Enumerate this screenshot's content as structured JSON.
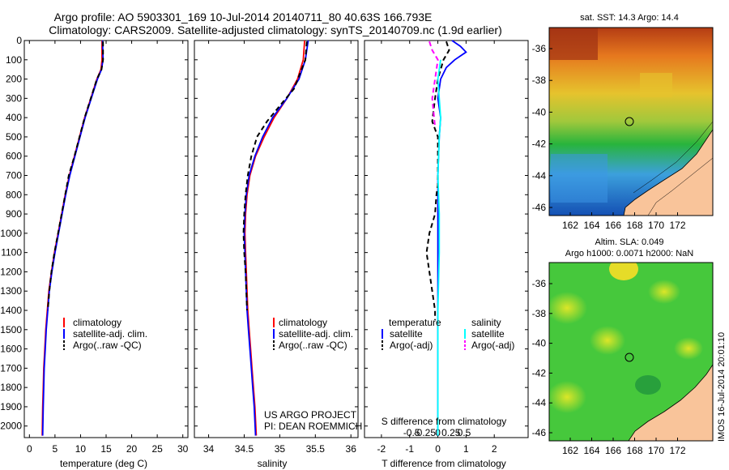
{
  "titles": {
    "line1": "Argo profile: AO 5903301_169 10-Jul-2014 20140711_80 40.63S 166.793E",
    "line2": "Climatology: CARS2009. Satellite-adjusted climatology: synTS_20140709.nc (1.9d earlier)"
  },
  "credits": {
    "line1": "US ARGO PROJECT",
    "line2": "PI: DEAN ROEMMICH",
    "imos": "IMOS 16-Jul-2014 20:01:10"
  },
  "maps": {
    "sst_title": "sat. SST: 14.3 Argo: 14.4",
    "sla_title1": "Altim. SLA: 0.049",
    "sla_title2": "Argo h1000: 0.0071 h2000: NaN",
    "lat_ticks": [
      "-36",
      "-38",
      "-40",
      "-42",
      "-44",
      "-46"
    ],
    "lon_ticks": [
      "162",
      "164",
      "166",
      "168",
      "170",
      "172"
    ],
    "float_lat": -40.63,
    "float_lon": 166.793,
    "colors": {
      "land": "#f9c49a",
      "warm": "#b43c14",
      "mid": "#e6c32d",
      "green": "#28b43c",
      "cool": "#3c96e6",
      "deep": "#1450b4"
    }
  },
  "chart_data": [
    {
      "type": "line",
      "xlabel": "temperature (deg C)",
      "ylabel": "",
      "xlim": [
        -1,
        31
      ],
      "ylim": [
        2060,
        0
      ],
      "x_ticks": [
        "0",
        "5",
        "10",
        "15",
        "20",
        "25",
        "30"
      ],
      "y_ticks": [
        "0",
        "100",
        "200",
        "300",
        "400",
        "500",
        "600",
        "700",
        "800",
        "900",
        "1000",
        "1100",
        "1200",
        "1300",
        "1400",
        "1500",
        "1600",
        "1700",
        "1800",
        "1900",
        "2000"
      ],
      "legend": [
        "climatology",
        "satellite-adj. clim.",
        "Argo(..raw -QC)"
      ],
      "series": [
        {
          "name": "climatology",
          "color": "#ff0000",
          "x": [
            14.2,
            14.2,
            14.0,
            13.2,
            12.0,
            10.8,
            9.8,
            8.8,
            7.8,
            7.0,
            6.3,
            5.6,
            4.9,
            4.3,
            3.8,
            3.5,
            3.2,
            3.0,
            2.8,
            2.7,
            2.6,
            2.5
          ],
          "y": [
            0,
            100,
            150,
            200,
            300,
            400,
            500,
            600,
            700,
            800,
            900,
            1000,
            1100,
            1200,
            1300,
            1400,
            1500,
            1600,
            1700,
            1800,
            1900,
            2050
          ]
        },
        {
          "name": "satellite-adj. clim.",
          "color": "#0000ff",
          "x": [
            14.3,
            14.4,
            14.1,
            13.3,
            12.1,
            10.9,
            9.9,
            8.9,
            7.9,
            7.1,
            6.4,
            5.7,
            5.0,
            4.4,
            3.9,
            3.6,
            3.3,
            3.1,
            2.9,
            2.8,
            2.7,
            2.6
          ],
          "y": [
            0,
            100,
            150,
            200,
            300,
            400,
            500,
            600,
            700,
            800,
            900,
            1000,
            1100,
            1200,
            1300,
            1400,
            1500,
            1600,
            1700,
            1800,
            1900,
            2050
          ]
        },
        {
          "name": "Argo(..raw -QC)",
          "color": "#000000",
          "dashed": true,
          "x": [
            14.4,
            14.4,
            14.1,
            13.2,
            12.0,
            10.8,
            9.8,
            8.8,
            7.7,
            7.0,
            6.3,
            5.6,
            4.9,
            4.3,
            3.9,
            3.6
          ],
          "y": [
            5,
            100,
            150,
            200,
            300,
            400,
            500,
            600,
            700,
            800,
            900,
            1000,
            1100,
            1200,
            1300,
            1400
          ]
        }
      ]
    },
    {
      "type": "line",
      "xlabel": "salinity",
      "ylabel": "",
      "xlim": [
        33.8,
        36.1
      ],
      "ylim": [
        2060,
        0
      ],
      "x_ticks": [
        "34",
        "34.5",
        "35",
        "35.5",
        "36"
      ],
      "legend": [
        "climatology",
        "satellite-adj. clim.",
        "Argo(..raw -QC)"
      ],
      "series": [
        {
          "name": "climatology",
          "color": "#ff0000",
          "x": [
            35.35,
            35.33,
            35.25,
            35.1,
            34.92,
            34.78,
            34.66,
            34.58,
            34.54,
            34.52,
            34.51,
            34.52,
            34.53,
            34.55,
            34.57,
            34.59,
            34.61,
            34.63,
            34.65,
            34.67
          ],
          "y": [
            0,
            100,
            200,
            300,
            400,
            500,
            600,
            700,
            800,
            900,
            1000,
            1100,
            1200,
            1400,
            1500,
            1600,
            1700,
            1800,
            1900,
            2050
          ]
        },
        {
          "name": "satellite-adj. clim.",
          "color": "#0000ff",
          "x": [
            35.4,
            35.36,
            35.27,
            35.1,
            34.9,
            34.76,
            34.65,
            34.57,
            34.53,
            34.51,
            34.5,
            34.51,
            34.52,
            34.54,
            34.56,
            34.58,
            34.6,
            34.62,
            34.64,
            34.66
          ],
          "y": [
            0,
            100,
            200,
            300,
            400,
            500,
            600,
            700,
            800,
            900,
            1000,
            1100,
            1200,
            1400,
            1500,
            1600,
            1700,
            1800,
            1900,
            2050
          ]
        },
        {
          "name": "Argo(..raw -QC)",
          "color": "#000000",
          "dashed": true,
          "x": [
            35.38,
            35.36,
            35.2,
            35.02,
            34.82,
            34.68,
            34.6,
            34.55,
            34.52,
            34.5,
            34.49,
            34.5,
            34.52,
            34.54
          ],
          "y": [
            5,
            100,
            250,
            330,
            420,
            500,
            600,
            700,
            800,
            900,
            1000,
            1100,
            1200,
            1400
          ]
        }
      ]
    },
    {
      "type": "line",
      "xlabel": "T difference from climatology",
      "xlabel2": "S difference from climatology",
      "xlim": [
        -2.6,
        3.2
      ],
      "ylim": [
        2060,
        0
      ],
      "x_ticks": [
        "-2",
        "-1",
        "0",
        "1",
        "2"
      ],
      "s_ticks": [
        "-0.5",
        "-0.25",
        "0",
        "0.25",
        "0.5"
      ],
      "legend_headers": [
        "temperature",
        "salinity"
      ],
      "legend_t": [
        "satellite",
        "Argo(-adj)"
      ],
      "legend_s": [
        "satellite",
        "Argo(-adj)"
      ],
      "series": [
        {
          "name": "temperature satellite",
          "color": "#0000ff",
          "x": [
            0.5,
            0.8,
            1.0,
            0.6,
            0.3,
            0.1,
            0.0,
            0.1,
            0.05,
            0.0,
            0.0,
            0.0,
            0.0,
            0.0,
            0.0
          ],
          "y": [
            0,
            30,
            60,
            100,
            140,
            200,
            300,
            400,
            500,
            700,
            900,
            1100,
            1400,
            1700,
            2050
          ]
        },
        {
          "name": "temperature Argo(-adj)",
          "color": "#000000",
          "dashed": true,
          "x": [
            0.3,
            0.4,
            0.2,
            0.0,
            -0.1,
            -0.2,
            0.0,
            0.0,
            0.0,
            -0.05,
            -0.1,
            -0.3,
            -0.4,
            -0.3,
            -0.2,
            -0.1,
            -0.1
          ],
          "y": [
            5,
            50,
            100,
            200,
            300,
            420,
            500,
            600,
            750,
            800,
            900,
            1000,
            1100,
            1200,
            1300,
            1400,
            1450
          ]
        },
        {
          "name": "salinity satellite",
          "color": "#00ffff",
          "x": [
            0.1,
            0.0,
            0.05,
            0.1,
            0.05,
            0.0,
            0.05,
            0.05,
            0.0,
            0.0,
            0.0
          ],
          "y": [
            100,
            200,
            300,
            400,
            500,
            700,
            900,
            1100,
            1400,
            1700,
            2050
          ]
        },
        {
          "name": "salinity Argo(-adj)",
          "color": "#ff00ff",
          "dashed": true,
          "x": [
            -0.3,
            -0.2,
            0.0,
            -0.1,
            -0.2,
            -0.1
          ],
          "y": [
            5,
            50,
            100,
            200,
            300,
            450
          ]
        }
      ]
    }
  ]
}
